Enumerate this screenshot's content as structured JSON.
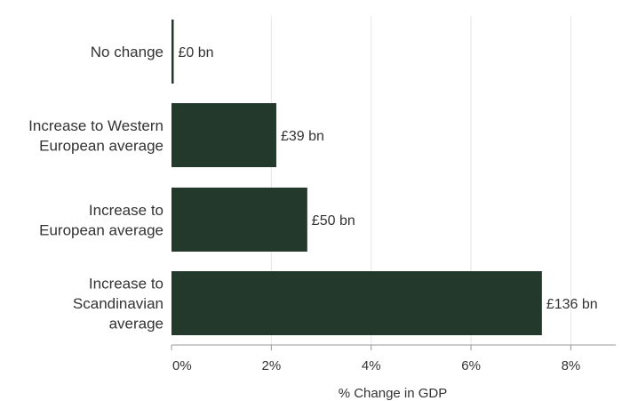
{
  "chart_data": {
    "type": "bar",
    "orientation": "horizontal",
    "categories": [
      [
        "No change"
      ],
      [
        "Increase to Western",
        "European average"
      ],
      [
        "Increase to",
        "European average"
      ],
      [
        "Increase to",
        "Scandinavian",
        "average"
      ]
    ],
    "values": [
      0.0,
      2.1,
      2.72,
      7.42
    ],
    "data_labels": [
      "£0 bn",
      "£39 bn",
      "£50 bn",
      "£136 bn"
    ],
    "xlabel": "% Change in GDP",
    "xlim": [
      0,
      8.9
    ],
    "xticks": [
      0,
      2,
      4,
      6,
      8
    ],
    "xtick_labels": [
      "0%",
      "2%",
      "4%",
      "6%",
      "8%"
    ],
    "grid": "vertical",
    "colors": {
      "bar": "#22392c",
      "grid": "#e6e6e6",
      "axis": "#999999",
      "text": "#333333"
    }
  }
}
